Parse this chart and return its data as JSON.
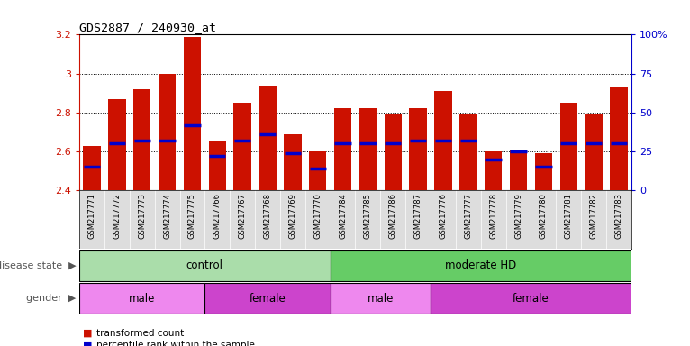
{
  "title": "GDS2887 / 240930_at",
  "samples": [
    "GSM217771",
    "GSM217772",
    "GSM217773",
    "GSM217774",
    "GSM217775",
    "GSM217766",
    "GSM217767",
    "GSM217768",
    "GSM217769",
    "GSM217770",
    "GSM217784",
    "GSM217785",
    "GSM217786",
    "GSM217787",
    "GSM217776",
    "GSM217777",
    "GSM217778",
    "GSM217779",
    "GSM217780",
    "GSM217781",
    "GSM217782",
    "GSM217783"
  ],
  "bar_heights": [
    2.63,
    2.87,
    2.92,
    3.0,
    3.19,
    2.65,
    2.85,
    2.94,
    2.69,
    2.6,
    2.82,
    2.82,
    2.79,
    2.82,
    2.91,
    2.79,
    2.6,
    2.61,
    2.59,
    2.85,
    2.79,
    2.93
  ],
  "percentile_ranks": [
    15,
    30,
    32,
    32,
    42,
    22,
    32,
    36,
    24,
    14,
    30,
    30,
    30,
    32,
    32,
    32,
    20,
    25,
    15,
    30,
    30,
    30
  ],
  "ymin": 2.4,
  "ymax": 3.2,
  "yticks": [
    2.4,
    2.6,
    2.8,
    3.0,
    3.2
  ],
  "ytick_labels": [
    "2.4",
    "2.6",
    "2.8",
    "3",
    "3.2"
  ],
  "right_yticks": [
    0,
    25,
    50,
    75,
    100
  ],
  "right_ytick_labels": [
    "0",
    "25",
    "50",
    "75",
    "100%"
  ],
  "bar_color": "#cc1100",
  "marker_color": "#0000cc",
  "grid_color": "#000000",
  "bg_color": "#ffffff",
  "control_color": "#90ee90",
  "moderate_hd_color": "#55cc55",
  "male_color": "#ee82ee",
  "female_color": "#cc55cc",
  "disease_state_groups": [
    {
      "label": "control",
      "start": 0,
      "end": 10,
      "color": "#aaddaa"
    },
    {
      "label": "moderate HD",
      "start": 10,
      "end": 22,
      "color": "#66cc66"
    }
  ],
  "gender_groups": [
    {
      "label": "male",
      "start": 0,
      "end": 5,
      "color": "#ee88ee"
    },
    {
      "label": "female",
      "start": 5,
      "end": 10,
      "color": "#cc44cc"
    },
    {
      "label": "male",
      "start": 10,
      "end": 14,
      "color": "#ee88ee"
    },
    {
      "label": "female",
      "start": 14,
      "end": 22,
      "color": "#cc44cc"
    }
  ],
  "legend_items": [
    {
      "label": "transformed count",
      "color": "#cc1100"
    },
    {
      "label": "percentile rank within the sample",
      "color": "#0000cc"
    }
  ]
}
